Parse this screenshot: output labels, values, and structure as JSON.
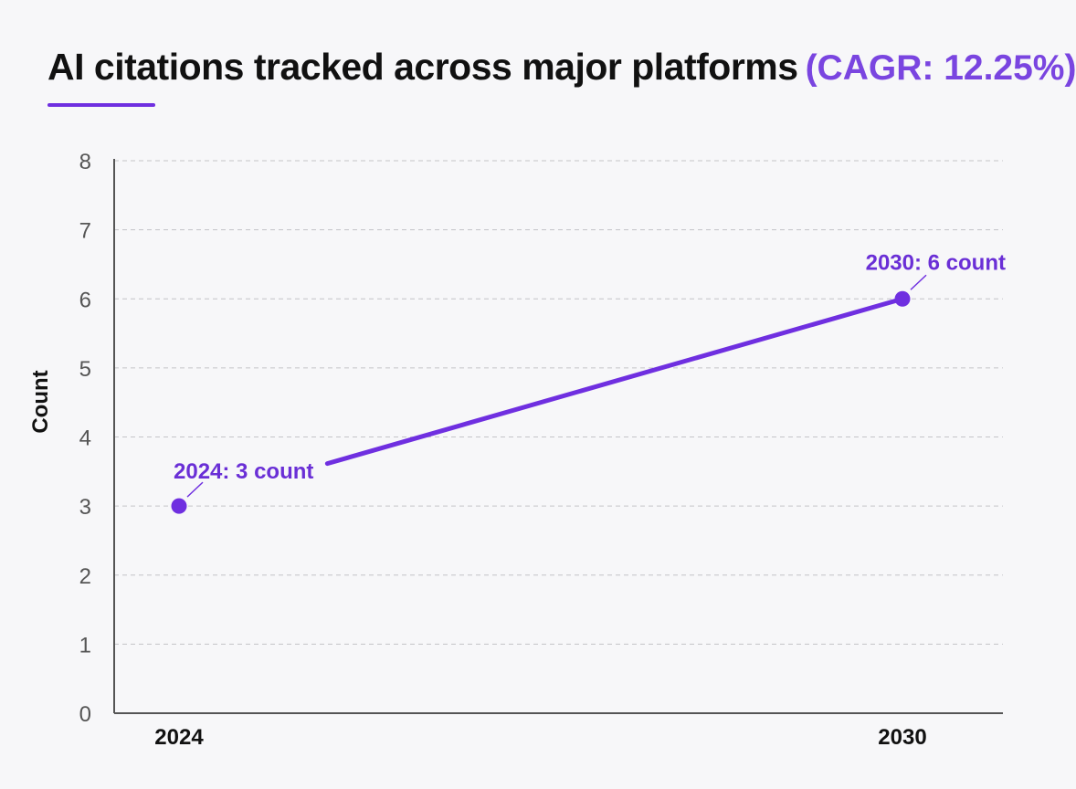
{
  "chart_data": {
    "type": "line",
    "title": "AI citations tracked across major platforms",
    "subtitle": "(CAGR: 12.25%)",
    "xlabel": "",
    "ylabel": "Count",
    "x": [
      "2024",
      "2030"
    ],
    "series": [
      {
        "values": [
          3,
          6
        ],
        "color": "#6f2fe0"
      }
    ],
    "data_labels": [
      "2024: 3 count",
      "2030: 6 count"
    ],
    "ylim": [
      0,
      8
    ],
    "yticks": [
      0,
      1,
      2,
      3,
      4,
      5,
      6,
      7,
      8
    ],
    "grid": "horizontal dashed",
    "legend": "none"
  },
  "colors": {
    "accent": "#6f2fe0",
    "background": "#f7f7f9",
    "title": "#111111"
  }
}
